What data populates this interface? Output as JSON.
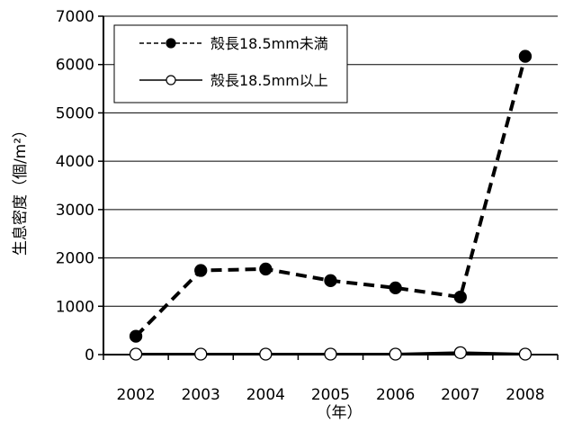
{
  "chart_data": {
    "type": "line",
    "categories": [
      "2002",
      "2003",
      "2004",
      "2005",
      "2006",
      "2007",
      "2008"
    ],
    "series": [
      {
        "name": "殻長18.5mm未満",
        "values": [
          380,
          1740,
          1770,
          1530,
          1380,
          1190,
          6170
        ],
        "line_style": "dashed",
        "marker": "filled-circle"
      },
      {
        "name": "殻長18.5mm以上",
        "values": [
          10,
          10,
          10,
          10,
          10,
          40,
          10
        ],
        "line_style": "solid",
        "marker": "open-circle"
      }
    ],
    "ylabel": "生息密度（個/m²）",
    "xlabel": "（年）",
    "ylim": [
      0,
      7000
    ],
    "yticks": [
      0,
      1000,
      2000,
      3000,
      4000,
      5000,
      6000,
      7000
    ],
    "ytick_labels": [
      "0",
      "1000",
      "2000",
      "3000",
      "4000",
      "5000",
      "6000",
      "7000"
    ],
    "grid": "horizontal",
    "legend_position": "top-left",
    "colors": {
      "line": "#000000",
      "background": "#ffffff"
    }
  }
}
